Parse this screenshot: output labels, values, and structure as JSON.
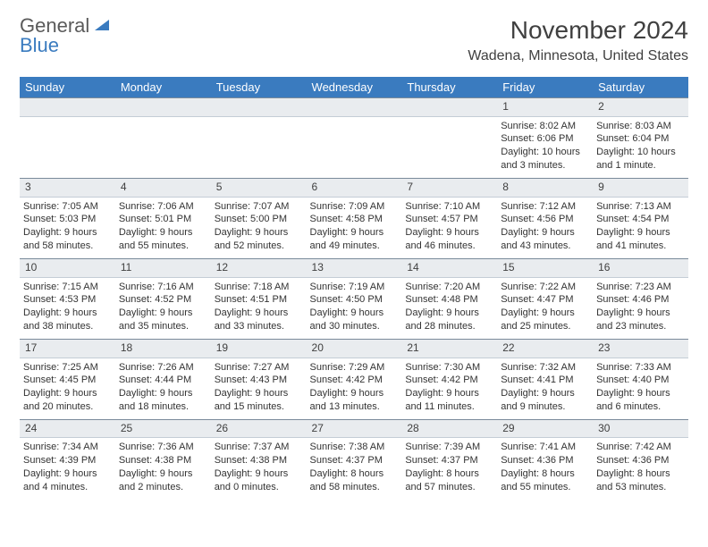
{
  "brand": {
    "part1": "General",
    "part2": "Blue"
  },
  "title": "November 2024",
  "location": "Wadena, Minnesota, United States",
  "colors": {
    "header_bg": "#3a7bbf",
    "header_text": "#ffffff",
    "daynum_bg": "#e9ecef",
    "daynum_border_top": "#7a8a9a",
    "text": "#333333",
    "title_text": "#404040"
  },
  "day_headers": [
    "Sunday",
    "Monday",
    "Tuesday",
    "Wednesday",
    "Thursday",
    "Friday",
    "Saturday"
  ],
  "weeks": [
    {
      "nums": [
        "",
        "",
        "",
        "",
        "",
        "1",
        "2"
      ],
      "cells": [
        null,
        null,
        null,
        null,
        null,
        {
          "sunrise": "Sunrise: 8:02 AM",
          "sunset": "Sunset: 6:06 PM",
          "day1": "Daylight: 10 hours",
          "day2": "and 3 minutes."
        },
        {
          "sunrise": "Sunrise: 8:03 AM",
          "sunset": "Sunset: 6:04 PM",
          "day1": "Daylight: 10 hours",
          "day2": "and 1 minute."
        }
      ]
    },
    {
      "nums": [
        "3",
        "4",
        "5",
        "6",
        "7",
        "8",
        "9"
      ],
      "cells": [
        {
          "sunrise": "Sunrise: 7:05 AM",
          "sunset": "Sunset: 5:03 PM",
          "day1": "Daylight: 9 hours",
          "day2": "and 58 minutes."
        },
        {
          "sunrise": "Sunrise: 7:06 AM",
          "sunset": "Sunset: 5:01 PM",
          "day1": "Daylight: 9 hours",
          "day2": "and 55 minutes."
        },
        {
          "sunrise": "Sunrise: 7:07 AM",
          "sunset": "Sunset: 5:00 PM",
          "day1": "Daylight: 9 hours",
          "day2": "and 52 minutes."
        },
        {
          "sunrise": "Sunrise: 7:09 AM",
          "sunset": "Sunset: 4:58 PM",
          "day1": "Daylight: 9 hours",
          "day2": "and 49 minutes."
        },
        {
          "sunrise": "Sunrise: 7:10 AM",
          "sunset": "Sunset: 4:57 PM",
          "day1": "Daylight: 9 hours",
          "day2": "and 46 minutes."
        },
        {
          "sunrise": "Sunrise: 7:12 AM",
          "sunset": "Sunset: 4:56 PM",
          "day1": "Daylight: 9 hours",
          "day2": "and 43 minutes."
        },
        {
          "sunrise": "Sunrise: 7:13 AM",
          "sunset": "Sunset: 4:54 PM",
          "day1": "Daylight: 9 hours",
          "day2": "and 41 minutes."
        }
      ]
    },
    {
      "nums": [
        "10",
        "11",
        "12",
        "13",
        "14",
        "15",
        "16"
      ],
      "cells": [
        {
          "sunrise": "Sunrise: 7:15 AM",
          "sunset": "Sunset: 4:53 PM",
          "day1": "Daylight: 9 hours",
          "day2": "and 38 minutes."
        },
        {
          "sunrise": "Sunrise: 7:16 AM",
          "sunset": "Sunset: 4:52 PM",
          "day1": "Daylight: 9 hours",
          "day2": "and 35 minutes."
        },
        {
          "sunrise": "Sunrise: 7:18 AM",
          "sunset": "Sunset: 4:51 PM",
          "day1": "Daylight: 9 hours",
          "day2": "and 33 minutes."
        },
        {
          "sunrise": "Sunrise: 7:19 AM",
          "sunset": "Sunset: 4:50 PM",
          "day1": "Daylight: 9 hours",
          "day2": "and 30 minutes."
        },
        {
          "sunrise": "Sunrise: 7:20 AM",
          "sunset": "Sunset: 4:48 PM",
          "day1": "Daylight: 9 hours",
          "day2": "and 28 minutes."
        },
        {
          "sunrise": "Sunrise: 7:22 AM",
          "sunset": "Sunset: 4:47 PM",
          "day1": "Daylight: 9 hours",
          "day2": "and 25 minutes."
        },
        {
          "sunrise": "Sunrise: 7:23 AM",
          "sunset": "Sunset: 4:46 PM",
          "day1": "Daylight: 9 hours",
          "day2": "and 23 minutes."
        }
      ]
    },
    {
      "nums": [
        "17",
        "18",
        "19",
        "20",
        "21",
        "22",
        "23"
      ],
      "cells": [
        {
          "sunrise": "Sunrise: 7:25 AM",
          "sunset": "Sunset: 4:45 PM",
          "day1": "Daylight: 9 hours",
          "day2": "and 20 minutes."
        },
        {
          "sunrise": "Sunrise: 7:26 AM",
          "sunset": "Sunset: 4:44 PM",
          "day1": "Daylight: 9 hours",
          "day2": "and 18 minutes."
        },
        {
          "sunrise": "Sunrise: 7:27 AM",
          "sunset": "Sunset: 4:43 PM",
          "day1": "Daylight: 9 hours",
          "day2": "and 15 minutes."
        },
        {
          "sunrise": "Sunrise: 7:29 AM",
          "sunset": "Sunset: 4:42 PM",
          "day1": "Daylight: 9 hours",
          "day2": "and 13 minutes."
        },
        {
          "sunrise": "Sunrise: 7:30 AM",
          "sunset": "Sunset: 4:42 PM",
          "day1": "Daylight: 9 hours",
          "day2": "and 11 minutes."
        },
        {
          "sunrise": "Sunrise: 7:32 AM",
          "sunset": "Sunset: 4:41 PM",
          "day1": "Daylight: 9 hours",
          "day2": "and 9 minutes."
        },
        {
          "sunrise": "Sunrise: 7:33 AM",
          "sunset": "Sunset: 4:40 PM",
          "day1": "Daylight: 9 hours",
          "day2": "and 6 minutes."
        }
      ]
    },
    {
      "nums": [
        "24",
        "25",
        "26",
        "27",
        "28",
        "29",
        "30"
      ],
      "cells": [
        {
          "sunrise": "Sunrise: 7:34 AM",
          "sunset": "Sunset: 4:39 PM",
          "day1": "Daylight: 9 hours",
          "day2": "and 4 minutes."
        },
        {
          "sunrise": "Sunrise: 7:36 AM",
          "sunset": "Sunset: 4:38 PM",
          "day1": "Daylight: 9 hours",
          "day2": "and 2 minutes."
        },
        {
          "sunrise": "Sunrise: 7:37 AM",
          "sunset": "Sunset: 4:38 PM",
          "day1": "Daylight: 9 hours",
          "day2": "and 0 minutes."
        },
        {
          "sunrise": "Sunrise: 7:38 AM",
          "sunset": "Sunset: 4:37 PM",
          "day1": "Daylight: 8 hours",
          "day2": "and 58 minutes."
        },
        {
          "sunrise": "Sunrise: 7:39 AM",
          "sunset": "Sunset: 4:37 PM",
          "day1": "Daylight: 8 hours",
          "day2": "and 57 minutes."
        },
        {
          "sunrise": "Sunrise: 7:41 AM",
          "sunset": "Sunset: 4:36 PM",
          "day1": "Daylight: 8 hours",
          "day2": "and 55 minutes."
        },
        {
          "sunrise": "Sunrise: 7:42 AM",
          "sunset": "Sunset: 4:36 PM",
          "day1": "Daylight: 8 hours",
          "day2": "and 53 minutes."
        }
      ]
    }
  ]
}
